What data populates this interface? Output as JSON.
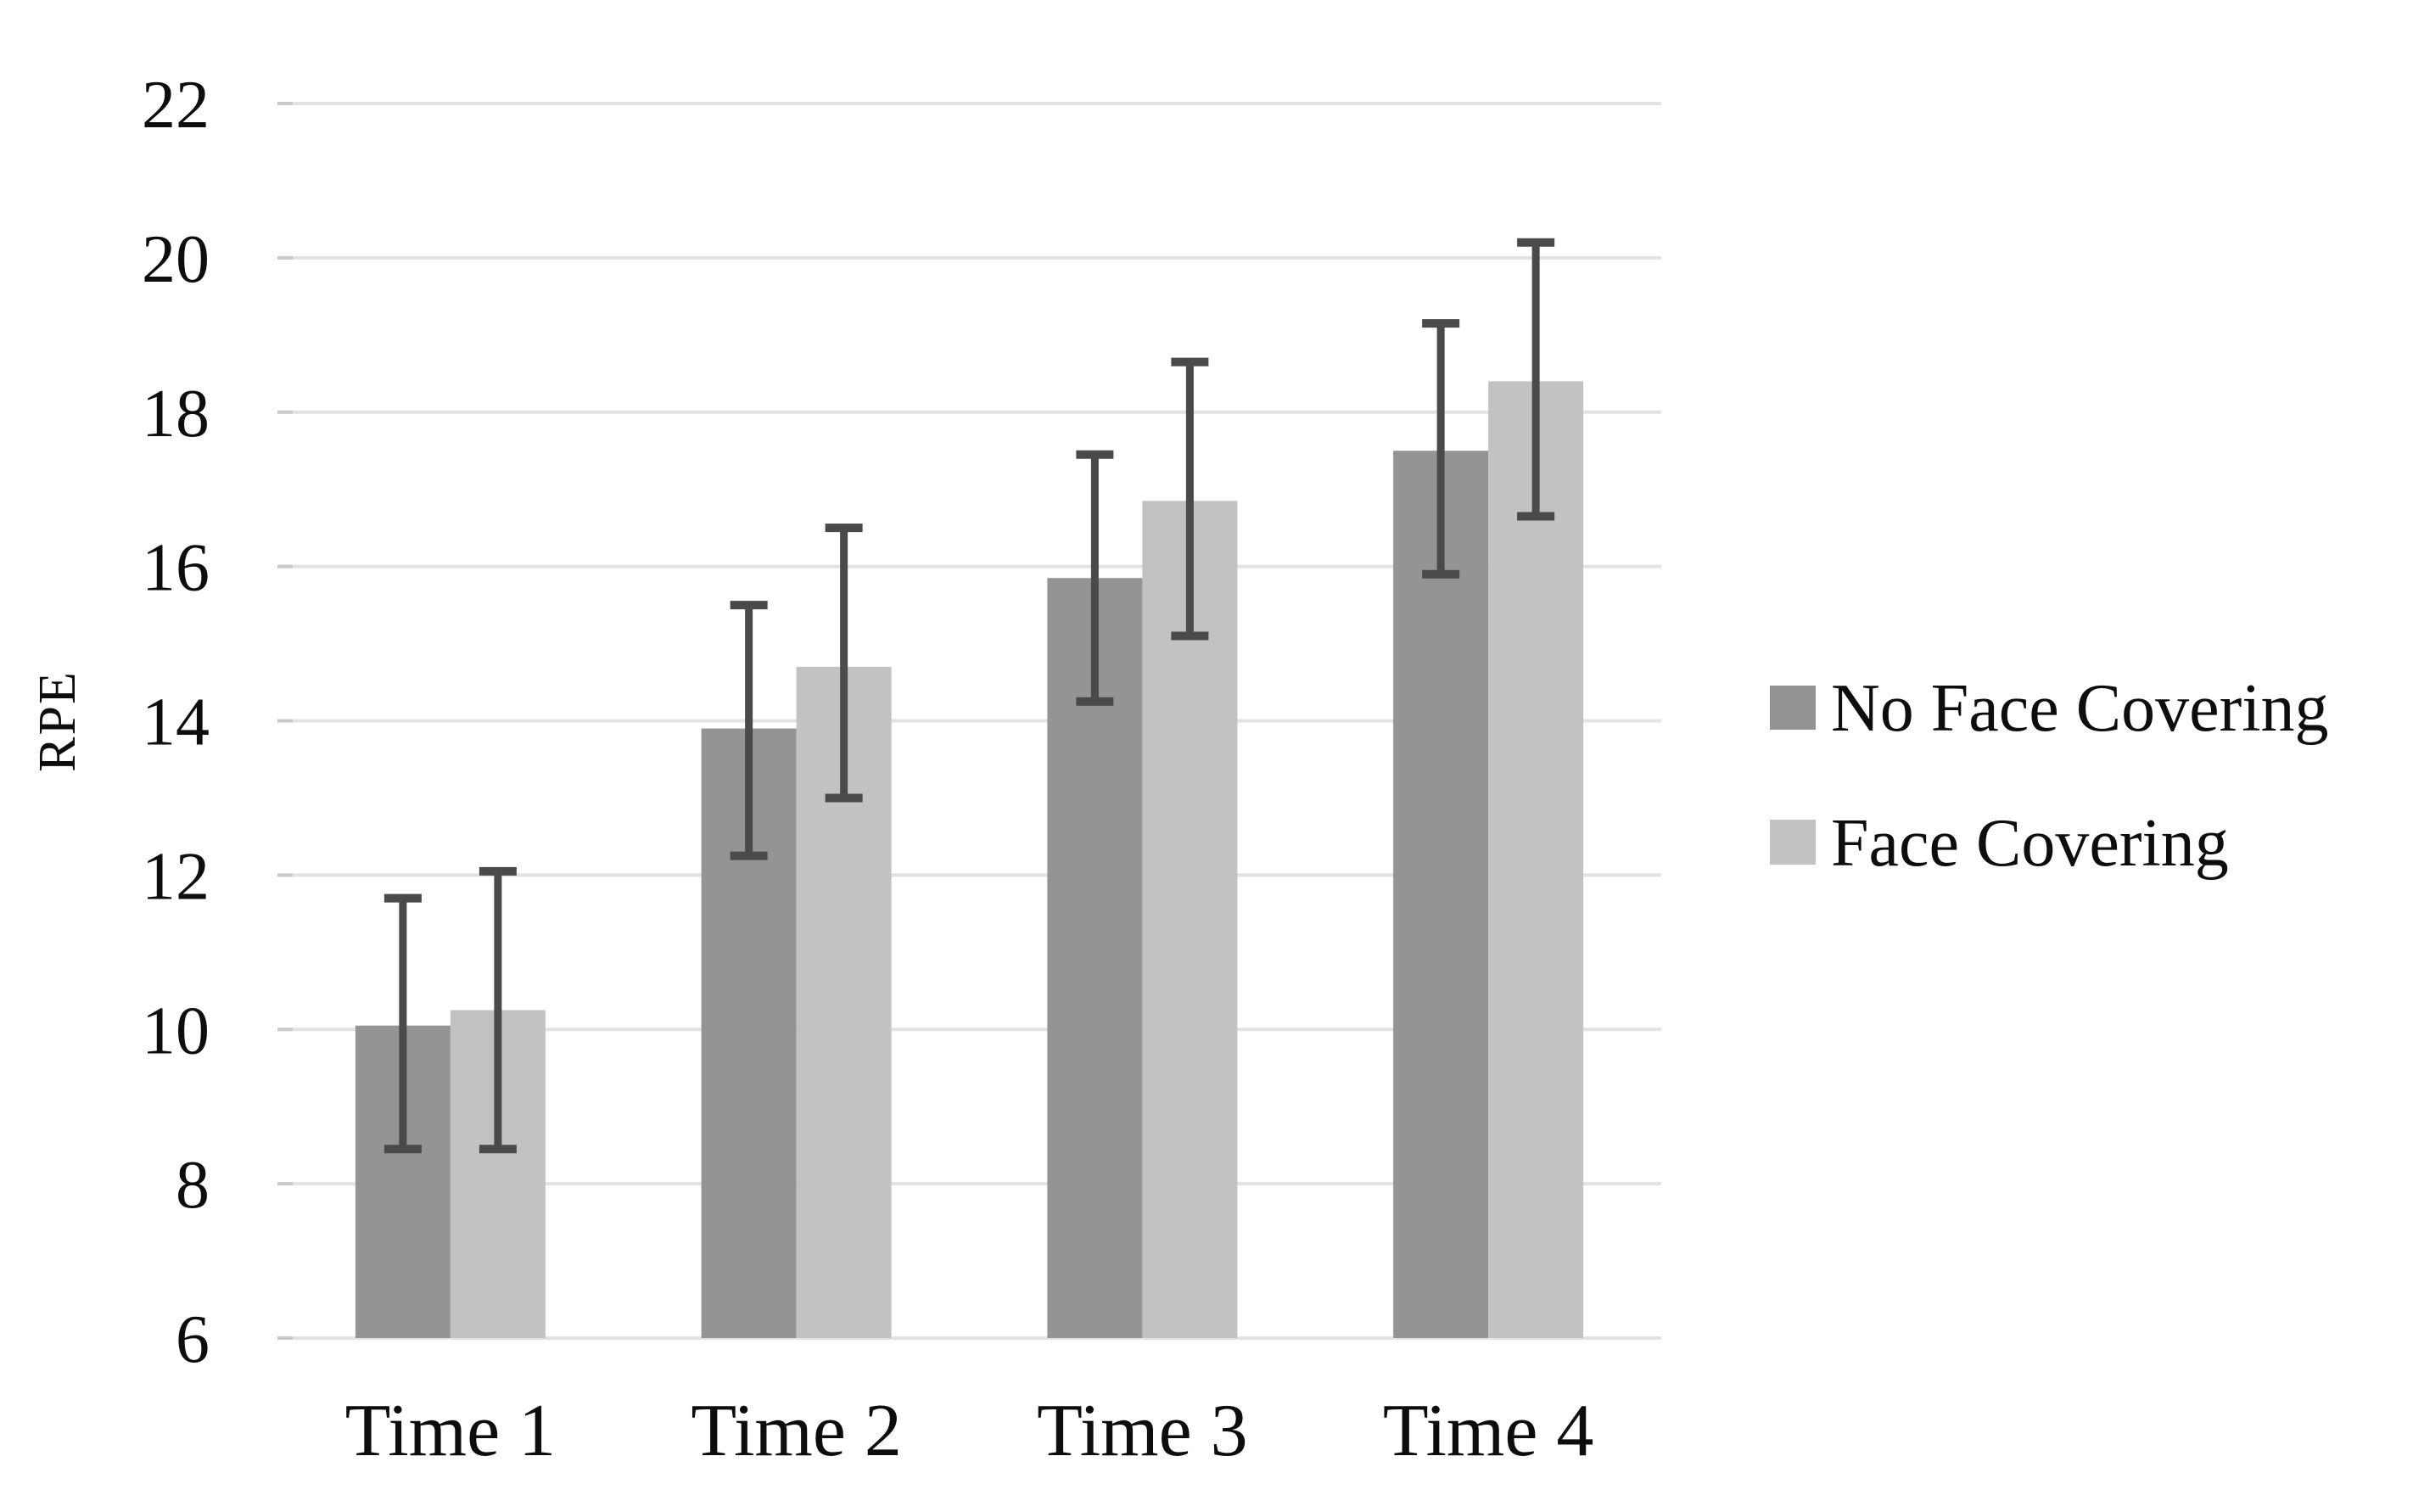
{
  "chart_data": {
    "type": "bar",
    "title": "",
    "ylabel": "RPE",
    "xlabel": "",
    "categories": [
      "Time 1",
      "Time 2",
      "Time 3",
      "Time 4"
    ],
    "series": [
      {
        "name": "No Face Covering",
        "color": "#949494",
        "values": [
          10.05,
          13.9,
          15.85,
          17.5
        ],
        "error_low": [
          8.45,
          12.25,
          14.25,
          15.9
        ],
        "error_high": [
          11.7,
          15.5,
          17.45,
          19.15
        ]
      },
      {
        "name": "Face Covering",
        "color": "#c2c2c2",
        "values": [
          10.25,
          14.7,
          16.85,
          18.4
        ],
        "error_low": [
          8.45,
          13.0,
          15.1,
          16.65
        ],
        "error_high": [
          12.05,
          16.5,
          18.65,
          20.2
        ]
      }
    ],
    "ylim": [
      6,
      22
    ],
    "yticks": [
      6,
      8,
      10,
      12,
      14,
      16,
      18,
      20,
      22
    ],
    "grid": true,
    "gridline_color": "#e2e2e2",
    "axis_tick_color": "#c9c9c9",
    "error_bar_color": "#4a4a4a",
    "background_color": "#ffffff",
    "legend_position": "right"
  }
}
